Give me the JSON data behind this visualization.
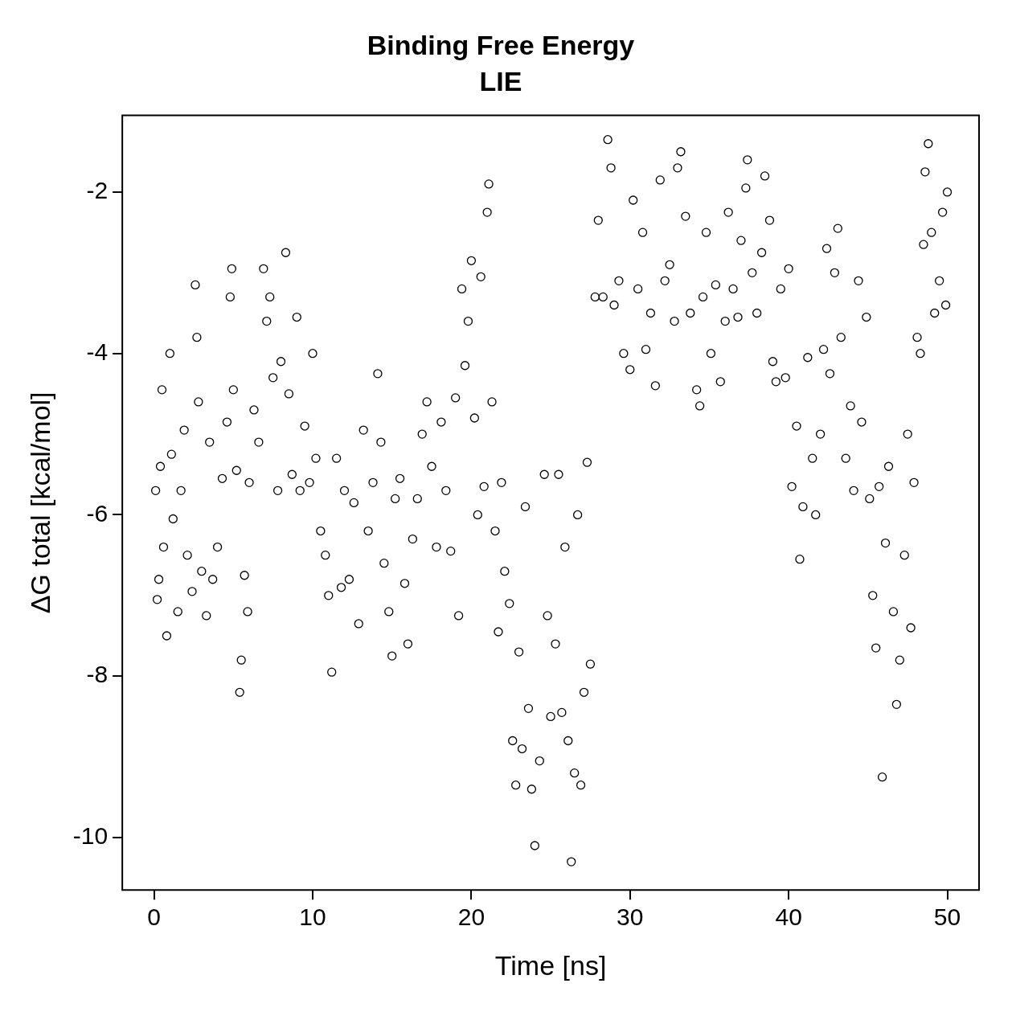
{
  "chart_data": {
    "type": "scatter",
    "title": "Binding Free Energy",
    "subtitle": "LIE",
    "xlabel": "Time [ns]",
    "ylabel": "ΔG total [kcal/mol]",
    "xlim": [
      -2,
      52
    ],
    "ylim": [
      -10.65,
      -1.05
    ],
    "xticks": [
      0,
      10,
      20,
      30,
      40,
      50
    ],
    "yticks": [
      -10,
      -8,
      -6,
      -4,
      -2
    ],
    "grid": false,
    "legend": false,
    "marker": "circle",
    "series": [
      {
        "color": "#000000",
        "x": [
          0.1,
          0.2,
          0.3,
          0.4,
          0.5,
          0.6,
          0.8,
          1.0,
          1.1,
          1.2,
          1.5,
          1.7,
          1.9,
          2.1,
          2.4,
          2.6,
          2.7,
          2.8,
          3.0,
          3.3,
          3.5,
          3.7,
          4.0,
          4.3,
          4.6,
          4.8,
          4.9,
          5.0,
          5.2,
          5.4,
          5.5,
          5.7,
          5.9,
          6.0,
          6.3,
          6.6,
          6.9,
          7.1,
          7.3,
          7.5,
          7.8,
          8.0,
          8.3,
          8.5,
          8.7,
          9.0,
          9.2,
          9.5,
          9.8,
          10.0,
          10.2,
          10.5,
          10.8,
          11.0,
          11.2,
          11.5,
          11.8,
          12.0,
          12.3,
          12.6,
          12.9,
          13.2,
          13.5,
          13.8,
          14.1,
          14.3,
          14.5,
          14.8,
          15.0,
          15.2,
          15.5,
          15.8,
          16.0,
          16.3,
          16.6,
          16.9,
          17.2,
          17.5,
          17.8,
          18.1,
          18.4,
          18.7,
          19.0,
          19.2,
          19.4,
          19.6,
          19.8,
          20.0,
          20.2,
          20.4,
          20.6,
          20.8,
          21.0,
          21.1,
          21.3,
          21.5,
          21.7,
          21.9,
          22.1,
          22.4,
          22.6,
          22.8,
          23.0,
          23.2,
          23.4,
          23.6,
          23.8,
          24.0,
          24.3,
          24.6,
          24.8,
          25.0,
          25.3,
          25.5,
          25.7,
          25.9,
          26.1,
          26.3,
          26.5,
          26.7,
          26.9,
          27.1,
          27.3,
          27.5,
          27.8,
          28.0,
          28.3,
          28.6,
          28.8,
          29.0,
          29.3,
          29.6,
          30.0,
          30.2,
          30.5,
          30.8,
          31.0,
          31.3,
          31.6,
          31.9,
          32.2,
          32.5,
          32.8,
          33.0,
          33.2,
          33.5,
          33.8,
          34.2,
          34.4,
          34.6,
          34.8,
          35.1,
          35.4,
          35.7,
          36.0,
          36.2,
          36.5,
          36.8,
          37.0,
          37.3,
          37.4,
          37.7,
          38.0,
          38.3,
          38.5,
          38.8,
          39.0,
          39.2,
          39.5,
          39.8,
          40.0,
          40.2,
          40.5,
          40.7,
          40.9,
          41.2,
          41.5,
          41.7,
          42.0,
          42.2,
          42.4,
          42.6,
          42.9,
          43.1,
          43.3,
          43.6,
          43.9,
          44.1,
          44.4,
          44.6,
          44.9,
          45.1,
          45.3,
          45.5,
          45.7,
          45.9,
          46.1,
          46.3,
          46.6,
          46.8,
          47.0,
          47.3,
          47.5,
          47.7,
          47.9,
          48.1,
          48.3,
          48.5,
          48.6,
          48.8,
          49.0,
          49.2,
          49.5,
          49.7,
          49.9,
          50.0
        ],
        "values": [
          -5.7,
          -7.05,
          -6.8,
          -5.4,
          -4.45,
          -6.4,
          -7.5,
          -4.0,
          -5.25,
          -6.05,
          -7.2,
          -5.7,
          -4.95,
          -6.5,
          -6.95,
          -3.15,
          -3.8,
          -4.6,
          -6.7,
          -7.25,
          -5.1,
          -6.8,
          -6.4,
          -5.55,
          -4.85,
          -3.3,
          -2.95,
          -4.45,
          -5.45,
          -8.2,
          -7.8,
          -6.75,
          -7.2,
          -5.6,
          -4.7,
          -5.1,
          -2.95,
          -3.6,
          -3.3,
          -4.3,
          -5.7,
          -4.1,
          -2.75,
          -4.5,
          -5.5,
          -3.55,
          -5.7,
          -4.9,
          -5.6,
          -4.0,
          -5.3,
          -6.2,
          -6.5,
          -7.0,
          -7.95,
          -5.3,
          -6.9,
          -5.7,
          -6.8,
          -5.85,
          -7.35,
          -4.95,
          -6.2,
          -5.6,
          -4.25,
          -5.1,
          -6.6,
          -7.2,
          -7.75,
          -5.8,
          -5.55,
          -6.85,
          -7.6,
          -6.3,
          -5.8,
          -5.0,
          -4.6,
          -5.4,
          -6.4,
          -4.85,
          -5.7,
          -6.45,
          -4.55,
          -7.25,
          -3.2,
          -4.15,
          -3.6,
          -2.85,
          -4.8,
          -6.0,
          -3.05,
          -5.65,
          -2.25,
          -1.9,
          -4.6,
          -6.2,
          -7.45,
          -5.6,
          -6.7,
          -7.1,
          -8.8,
          -9.35,
          -7.7,
          -8.9,
          -5.9,
          -8.4,
          -9.4,
          -10.1,
          -9.05,
          -5.5,
          -7.25,
          -8.5,
          -7.6,
          -5.5,
          -8.45,
          -6.4,
          -8.8,
          -10.3,
          -9.2,
          -6.0,
          -9.35,
          -8.2,
          -5.35,
          -7.85,
          -3.3,
          -2.35,
          -3.3,
          -1.35,
          -1.7,
          -3.4,
          -3.1,
          -4.0,
          -4.2,
          -2.1,
          -3.2,
          -2.5,
          -3.95,
          -3.5,
          -4.4,
          -1.85,
          -3.1,
          -2.9,
          -3.6,
          -1.7,
          -1.5,
          -2.3,
          -3.5,
          -4.45,
          -4.65,
          -3.3,
          -2.5,
          -4.0,
          -3.15,
          -4.35,
          -3.6,
          -2.25,
          -3.2,
          -3.55,
          -2.6,
          -1.95,
          -1.6,
          -3.0,
          -3.5,
          -2.75,
          -1.8,
          -2.35,
          -4.1,
          -4.35,
          -3.2,
          -4.3,
          -2.95,
          -5.65,
          -4.9,
          -6.55,
          -5.9,
          -4.05,
          -5.3,
          -6.0,
          -5.0,
          -3.95,
          -2.7,
          -4.25,
          -3.0,
          -2.45,
          -3.8,
          -5.3,
          -4.65,
          -5.7,
          -3.1,
          -4.85,
          -3.55,
          -5.8,
          -7.0,
          -7.65,
          -5.65,
          -9.25,
          -6.35,
          -5.4,
          -7.2,
          -8.35,
          -7.8,
          -6.5,
          -5.0,
          -7.4,
          -5.6,
          -3.8,
          -4.0,
          -2.65,
          -1.75,
          -1.4,
          -2.5,
          -3.5,
          -3.1,
          -2.25,
          -3.4,
          -2.0
        ]
      }
    ]
  }
}
